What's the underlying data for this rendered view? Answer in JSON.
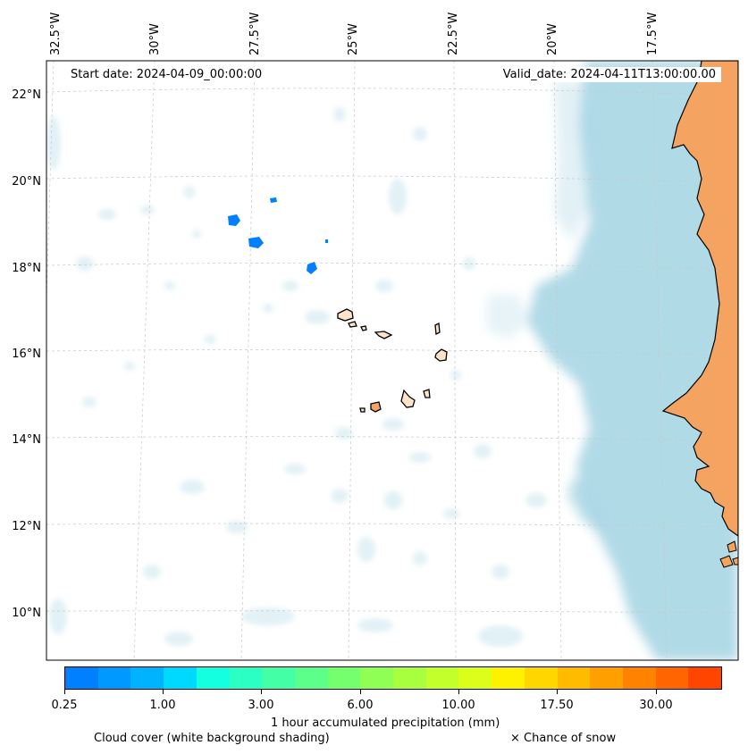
{
  "map": {
    "start_date": "Start date: 2024-04-09_00:00:00",
    "valid_date": "Valid_date: 2024-04-11T13:00:00.00",
    "lon_labels": [
      "32.5°W",
      "30°W",
      "27.5°W",
      "25°W",
      "22.5°W",
      "20°W",
      "17.5°W"
    ],
    "lat_labels": [
      "22°N",
      "20°N",
      "18°N",
      "16°N",
      "14°N",
      "12°N",
      "10°N"
    ],
    "colors": {
      "ocean": "#ffffff",
      "cloud": "#add8e6",
      "land": "#f4a460",
      "precip": "#0080ff"
    }
  },
  "colorbar": {
    "colors": [
      "#0080ff",
      "#0099ff",
      "#00b3ff",
      "#00d9ff",
      "#14ffe0",
      "#2bffc3",
      "#43ffa6",
      "#5cff8a",
      "#75ff6e",
      "#8fff55",
      "#a8ff3e",
      "#c2ff2b",
      "#dbff1a",
      "#fff200",
      "#ffd700",
      "#ffbb00",
      "#ff9f00",
      "#ff8300",
      "#ff6500",
      "#ff4500"
    ],
    "tick_labels": [
      "0.25",
      "1.00",
      "3.00",
      "6.00",
      "10.00",
      "17.50",
      "30.00"
    ],
    "label": "1 hour accumulated precipitation (mm)"
  },
  "legend": {
    "cloud_note": "Cloud cover (white background shading)",
    "snow_note": "× Chance of snow"
  }
}
